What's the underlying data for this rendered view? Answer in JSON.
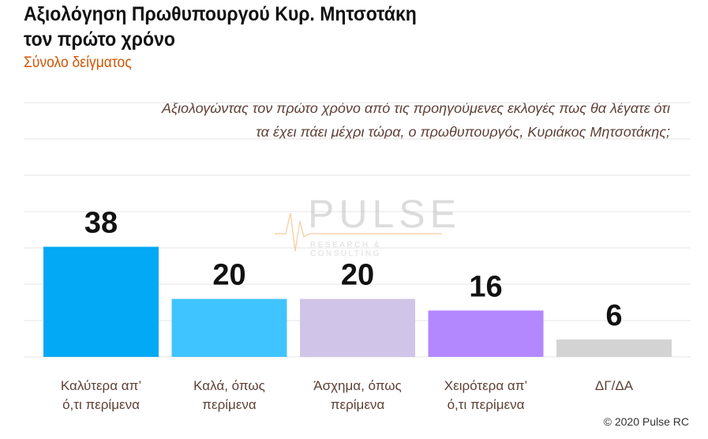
{
  "chart_data": {
    "type": "bar",
    "title": "Αξιολόγηση Πρωθυπουργού Κυρ. Μητσοτάκη τον πρώτο χρόνο",
    "title_lines": [
      "Αξιολόγηση Πρωθυπουργού Κυρ. Μητσοτάκη",
      "τον πρώτο χρόνο"
    ],
    "subtitle": "Σύνολο δείγματος",
    "question_lines": [
      "Αξιολογώντας τον πρώτο χρόνο από τις προηγούμενες εκλογές πως θα λέγατε ότι",
      "τα έχει πάει μέχρι τώρα, ο πρωθυπουργός, Κυριάκος Μητσοτάκης;"
    ],
    "categories": [
      [
        "Καλύτερα απ’",
        "ό,τι περίμενα"
      ],
      [
        "Καλά, όπως",
        "περίμενα"
      ],
      [
        "Άσχημα, όπως",
        "περίμενα"
      ],
      [
        "Χειρότερα απ’",
        "ό,τι περίμενα"
      ],
      [
        "ΔΓ/ΔΑ"
      ]
    ],
    "values": [
      38,
      20,
      20,
      16,
      6
    ],
    "colors": [
      "#03a9f4",
      "#40c4ff",
      "#d1c4e9",
      "#b388ff",
      "#d3d3d3"
    ],
    "ylim": [
      0,
      87.5
    ],
    "grid": true,
    "xlabel": "",
    "ylabel": ""
  },
  "watermark": {
    "name": "PULSE",
    "tag": "RESEARCH & CONSULTING"
  },
  "copyright": "© 2020 Pulse RC"
}
